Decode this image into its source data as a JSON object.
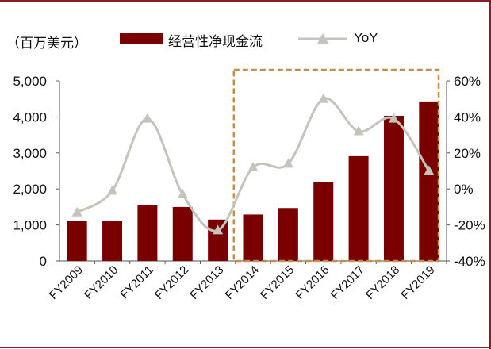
{
  "legend": {
    "unit": "（百万美元）",
    "bar_label": "经营性净现金流",
    "line_label": "YoY"
  },
  "chart_data": {
    "type": "bar",
    "categories": [
      "FY2009",
      "FY2010",
      "FY2011",
      "FY2012",
      "FY2013",
      "FY2014",
      "FY2015",
      "FY2016",
      "FY2017",
      "FY2018",
      "FY2019"
    ],
    "series": [
      {
        "name": "经营性净现金流",
        "type": "bar",
        "axis": "left",
        "color": "#7a0000",
        "values": [
          1120,
          1110,
          1550,
          1500,
          1150,
          1290,
          1470,
          2200,
          2910,
          4030,
          4430
        ]
      },
      {
        "name": "YoY",
        "type": "line",
        "axis": "right",
        "color": "#c4c4bc",
        "values": [
          -13,
          -1,
          39,
          -3,
          -23,
          12,
          14,
          50,
          32,
          39,
          10
        ]
      }
    ],
    "y_left": {
      "ticks": [
        "0",
        "1,000",
        "2,000",
        "3,000",
        "4,000",
        "5,000"
      ],
      "ylim": [
        0,
        5000
      ]
    },
    "y_right": {
      "ticks": [
        "-40%",
        "-20%",
        "0%",
        "20%",
        "40%",
        "60%"
      ],
      "ylim": [
        -40,
        60
      ]
    },
    "highlight_range": [
      "FY2014",
      "FY2019"
    ],
    "highlight_color": "#c0904e",
    "grid": false,
    "legend_position": "top"
  }
}
